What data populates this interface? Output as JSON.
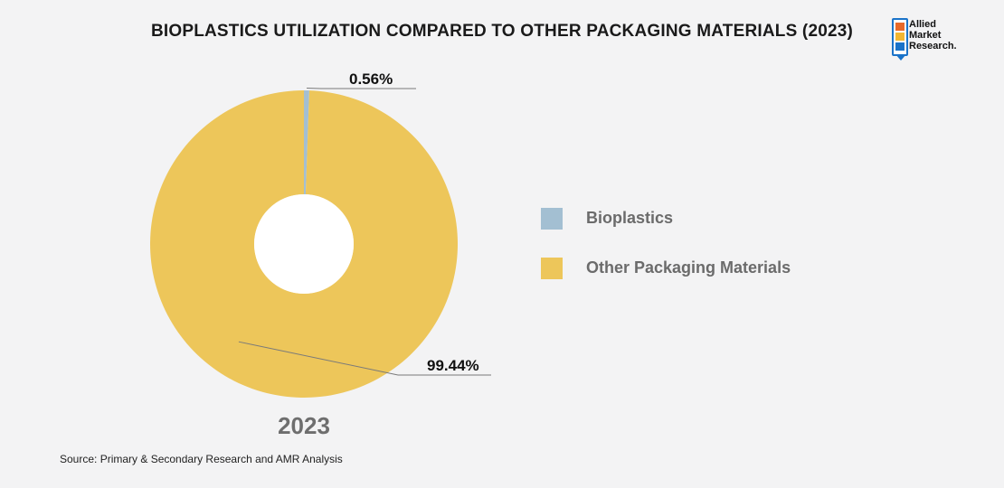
{
  "title": "BIOPLASTICS UTILIZATION COMPARED TO OTHER PACKAGING MATERIALS (2023)",
  "logo": {
    "line1": "Allied",
    "line2": "Market",
    "line3": "Research."
  },
  "chart_data": {
    "type": "pie",
    "title": "BIOPLASTICS UTILIZATION COMPARED TO OTHER PACKAGING MATERIALS (2023)",
    "categories": [
      "Bioplastics",
      "Other Packaging Materials"
    ],
    "values": [
      0.56,
      99.44
    ],
    "data_labels": [
      "0.56%",
      "99.44%"
    ],
    "colors": [
      "#a3bfd2",
      "#edc65a"
    ],
    "xlabel": "2023",
    "legend_position": "right",
    "donut": true
  },
  "legend": [
    {
      "label": "Bioplastics",
      "color": "#a3bfd2"
    },
    {
      "label": "Other Packaging Materials",
      "color": "#edc65a"
    }
  ],
  "year_label": "2023",
  "source": "Source: Primary & Secondary Research and AMR Analysis"
}
